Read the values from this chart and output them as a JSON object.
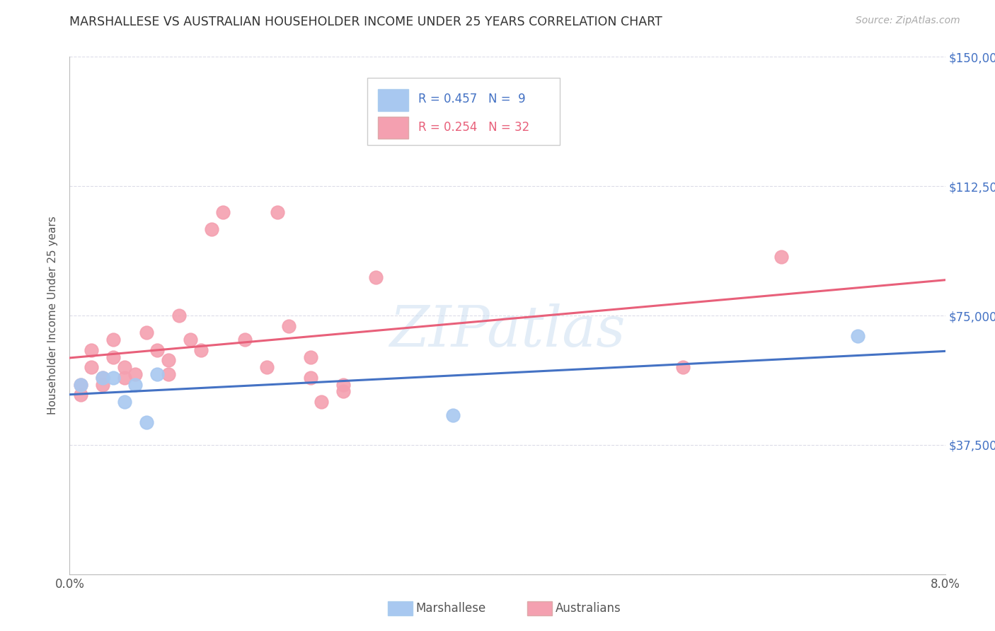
{
  "title": "MARSHALLESE VS AUSTRALIAN HOUSEHOLDER INCOME UNDER 25 YEARS CORRELATION CHART",
  "source": "Source: ZipAtlas.com",
  "ylabel": "Householder Income Under 25 years",
  "y_ticks": [
    0,
    37500,
    75000,
    112500,
    150000
  ],
  "y_tick_labels": [
    "",
    "$37,500",
    "$75,000",
    "$112,500",
    "$150,000"
  ],
  "xlim": [
    0.0,
    0.08
  ],
  "ylim": [
    0,
    150000
  ],
  "legend1_label": "Marshallese",
  "legend1_R": "R = 0.457",
  "legend1_N": "N =  9",
  "legend2_label": "Australians",
  "legend2_R": "R = 0.254",
  "legend2_N": "N = 32",
  "marshallese_x": [
    0.001,
    0.003,
    0.004,
    0.005,
    0.006,
    0.007,
    0.008,
    0.035,
    0.072
  ],
  "marshallese_y": [
    55000,
    57000,
    57000,
    50000,
    55000,
    44000,
    58000,
    46000,
    69000
  ],
  "australians_x": [
    0.001,
    0.001,
    0.002,
    0.002,
    0.003,
    0.003,
    0.004,
    0.004,
    0.005,
    0.005,
    0.006,
    0.007,
    0.008,
    0.009,
    0.009,
    0.01,
    0.011,
    0.012,
    0.013,
    0.014,
    0.016,
    0.018,
    0.019,
    0.02,
    0.022,
    0.022,
    0.023,
    0.025,
    0.025,
    0.028,
    0.056,
    0.065
  ],
  "australians_y": [
    55000,
    52000,
    65000,
    60000,
    57000,
    55000,
    63000,
    68000,
    57000,
    60000,
    58000,
    70000,
    65000,
    58000,
    62000,
    75000,
    68000,
    65000,
    100000,
    105000,
    68000,
    60000,
    105000,
    72000,
    63000,
    57000,
    50000,
    53000,
    55000,
    86000,
    60000,
    92000
  ],
  "blue_line_color": "#4472C4",
  "pink_line_color": "#E8607A",
  "blue_dot_color": "#A8C8F0",
  "pink_dot_color": "#F4A0B0",
  "watermark": "ZIPatlas",
  "background_color": "#FFFFFF",
  "grid_color": "#DCDCE8"
}
